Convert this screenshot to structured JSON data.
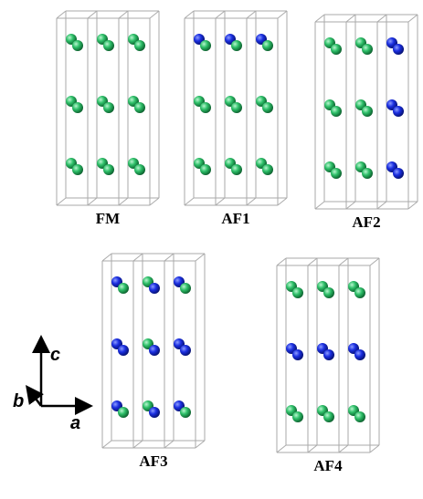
{
  "panels": [
    {
      "label": "FM"
    },
    {
      "label": "AF1"
    },
    {
      "label": "AF2"
    },
    {
      "label": "AF3"
    },
    {
      "label": "AF4"
    }
  ],
  "axes": {
    "c": "c",
    "b": "b",
    "a": "a"
  }
}
